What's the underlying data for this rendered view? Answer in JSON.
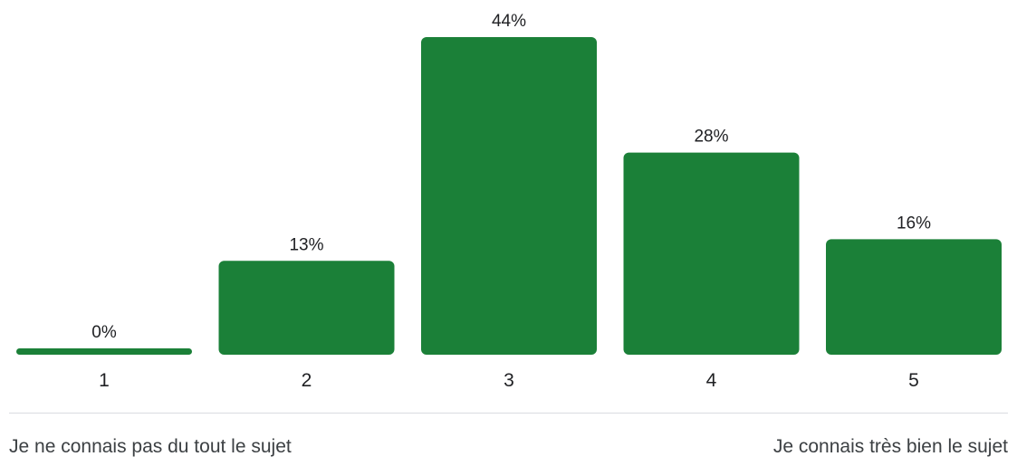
{
  "colors": {
    "bar": "#1b8038",
    "text": "#202124",
    "divider": "#dadce0"
  },
  "chart_data": {
    "type": "bar",
    "categories": [
      "1",
      "2",
      "3",
      "4",
      "5"
    ],
    "values": [
      0,
      13,
      44,
      28,
      16
    ],
    "value_labels": [
      "0%",
      "13%",
      "44%",
      "28%",
      "16%"
    ],
    "unit": "%",
    "ylim": [
      0,
      44
    ],
    "grid": false,
    "legend": "none"
  },
  "scale": {
    "low_label": "Je ne connais pas du tout le sujet",
    "high_label": "Je connais très bien le sujet"
  }
}
